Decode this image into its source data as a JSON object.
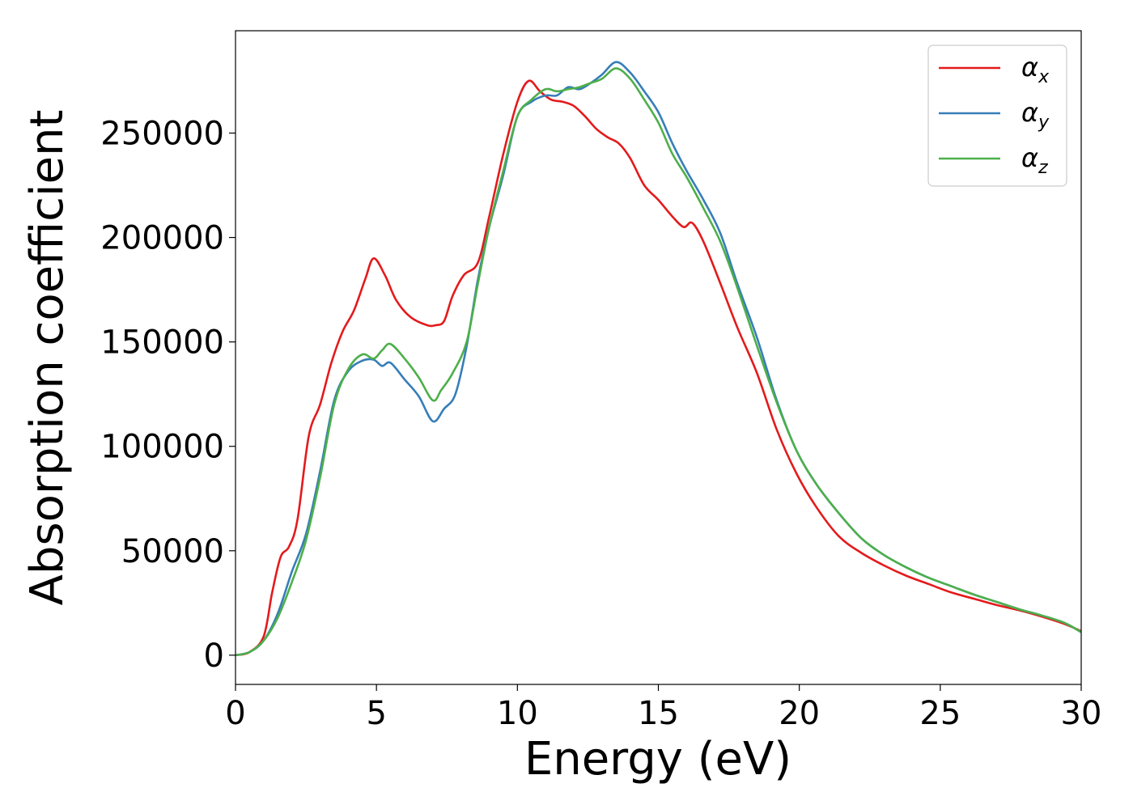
{
  "chart_data": {
    "type": "line",
    "title": "",
    "xlabel": "Energy (eV)",
    "ylabel": "Absorption coefficient",
    "xlim": [
      0,
      30
    ],
    "ylim": [
      -14000,
      299000
    ],
    "xticks": [
      0,
      5,
      10,
      15,
      20,
      25,
      30
    ],
    "yticks": [
      0,
      50000,
      100000,
      150000,
      200000,
      250000
    ],
    "grid": false,
    "legend_position": "top-right",
    "series": [
      {
        "name": "α_x",
        "legend_base": "α",
        "legend_sub": "x",
        "color": "#e41a1c",
        "x": [
          0,
          0.5,
          1.0,
          1.3,
          1.6,
          1.9,
          2.2,
          2.6,
          3.0,
          3.4,
          3.8,
          4.2,
          4.6,
          4.9,
          5.3,
          5.7,
          6.2,
          6.8,
          7.1,
          7.4,
          7.7,
          8.1,
          8.6,
          9.0,
          9.5,
          10.0,
          10.4,
          10.8,
          11.2,
          11.6,
          12.0,
          12.4,
          12.8,
          13.2,
          13.6,
          14.0,
          14.5,
          15.0,
          15.5,
          15.9,
          16.2,
          16.6,
          17.2,
          17.8,
          18.5,
          19.2,
          19.9,
          20.6,
          21.4,
          22.2,
          23.0,
          23.8,
          24.6,
          25.4,
          26.2,
          27.0,
          27.8,
          28.6,
          29.4,
          30.0
        ],
        "values": [
          0,
          1500,
          9000,
          30000,
          47000,
          52000,
          65000,
          105000,
          120000,
          140000,
          155000,
          165000,
          180000,
          190000,
          182000,
          170000,
          162000,
          158000,
          158000,
          160000,
          172000,
          182000,
          188000,
          210000,
          240000,
          265000,
          275000,
          270000,
          266000,
          265000,
          263000,
          258000,
          252000,
          248000,
          245000,
          238000,
          225000,
          218000,
          210000,
          205000,
          207000,
          198000,
          178000,
          157000,
          135000,
          108000,
          87000,
          71000,
          57000,
          49000,
          43000,
          38000,
          34000,
          30000,
          27000,
          24000,
          21500,
          18500,
          15000,
          11500
        ]
      },
      {
        "name": "α_y",
        "legend_base": "α",
        "legend_sub": "y",
        "color": "#377eb8",
        "x": [
          0,
          0.5,
          1.0,
          1.5,
          2.0,
          2.5,
          3.0,
          3.5,
          4.0,
          4.5,
          4.9,
          5.2,
          5.5,
          6.0,
          6.5,
          7.0,
          7.4,
          7.8,
          8.2,
          8.6,
          9.0,
          9.5,
          10.0,
          10.5,
          11.0,
          11.4,
          11.8,
          12.2,
          12.6,
          13.0,
          13.5,
          14.0,
          14.5,
          15.0,
          15.5,
          16.0,
          16.6,
          17.2,
          17.8,
          18.5,
          19.2,
          19.9,
          20.6,
          21.4,
          22.2,
          23.0,
          23.8,
          24.6,
          25.4,
          26.2,
          27.0,
          27.8,
          28.6,
          29.4,
          30.0
        ],
        "values": [
          0,
          1500,
          7000,
          20000,
          40000,
          58000,
          88000,
          122000,
          136000,
          141000,
          141500,
          138500,
          140000,
          132000,
          124000,
          112000,
          118000,
          125000,
          148000,
          180000,
          205000,
          230000,
          258000,
          265000,
          268000,
          268000,
          272000,
          271000,
          274000,
          278000,
          284000,
          279000,
          270000,
          260000,
          245000,
          232000,
          218000,
          202000,
          178000,
          152000,
          122000,
          98000,
          82000,
          68000,
          56000,
          48000,
          42000,
          37000,
          33000,
          29000,
          25500,
          22000,
          19000,
          15500,
          11000
        ]
      },
      {
        "name": "α_z",
        "legend_base": "α",
        "legend_sub": "z",
        "color": "#4daf4a",
        "x": [
          0,
          0.5,
          1.0,
          1.5,
          2.0,
          2.5,
          3.0,
          3.5,
          4.0,
          4.5,
          4.9,
          5.2,
          5.5,
          6.0,
          6.5,
          7.0,
          7.3,
          7.7,
          8.2,
          8.6,
          9.0,
          9.5,
          10.0,
          10.5,
          11.0,
          11.4,
          11.8,
          12.2,
          12.6,
          13.0,
          13.5,
          14.0,
          14.5,
          15.0,
          15.5,
          16.0,
          16.6,
          17.2,
          17.8,
          18.5,
          19.2,
          19.9,
          20.6,
          21.4,
          22.2,
          23.0,
          23.8,
          24.6,
          25.4,
          26.2,
          27.0,
          27.8,
          28.6,
          29.4,
          30.0
        ],
        "values": [
          0,
          1500,
          7000,
          18000,
          35000,
          55000,
          85000,
          120000,
          137000,
          144000,
          142000,
          146000,
          149000,
          142000,
          133000,
          122000,
          127000,
          135000,
          150000,
          178000,
          205000,
          232000,
          258000,
          266000,
          271000,
          270000,
          271000,
          272000,
          274000,
          276000,
          281000,
          276000,
          266000,
          255000,
          240000,
          229000,
          214000,
          198000,
          176000,
          148000,
          121000,
          98000,
          82000,
          68000,
          56000,
          48000,
          42000,
          37000,
          33000,
          29000,
          25500,
          22000,
          19000,
          15500,
          11000
        ]
      }
    ]
  }
}
